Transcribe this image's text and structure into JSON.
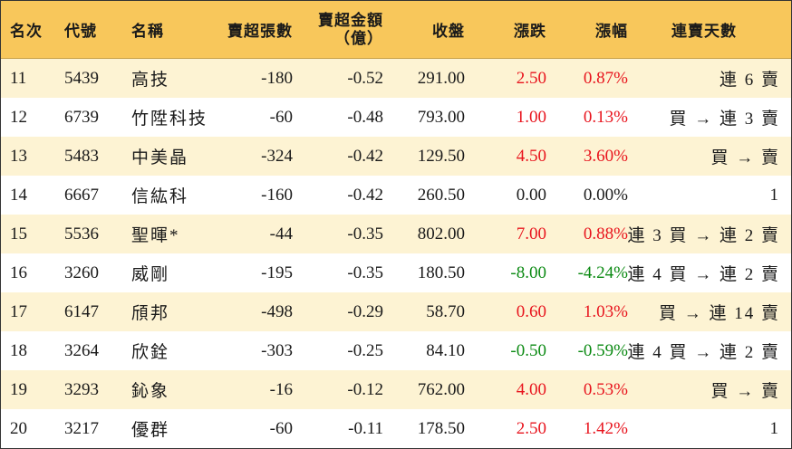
{
  "headers": {
    "rank": "名次",
    "code": "代號",
    "name": "名稱",
    "net_sell_lots": "賣超張數",
    "net_sell_amount_line1": "賣超金額",
    "net_sell_amount_line2": "（億）",
    "close": "收盤",
    "change": "漲跌",
    "change_pct": "漲幅",
    "streak": "連賣天數"
  },
  "rows": [
    {
      "rank": "11",
      "code": "5439",
      "name": "高技",
      "lots": "-180",
      "amount": "-0.52",
      "close": "291.00",
      "change": "2.50",
      "pct": "0.87%",
      "dir": "up",
      "streak": "連 6 賣"
    },
    {
      "rank": "12",
      "code": "6739",
      "name": "竹陞科技",
      "lots": "-60",
      "amount": "-0.48",
      "close": "793.00",
      "change": "1.00",
      "pct": "0.13%",
      "dir": "up",
      "streak": "買 → 連 3 賣"
    },
    {
      "rank": "13",
      "code": "5483",
      "name": "中美晶",
      "lots": "-324",
      "amount": "-0.42",
      "close": "129.50",
      "change": "4.50",
      "pct": "3.60%",
      "dir": "up",
      "streak": "買 → 賣"
    },
    {
      "rank": "14",
      "code": "6667",
      "name": "信紘科",
      "lots": "-160",
      "amount": "-0.42",
      "close": "260.50",
      "change": "0.00",
      "pct": "0.00%",
      "dir": "flat",
      "streak": "1"
    },
    {
      "rank": "15",
      "code": "5536",
      "name": "聖暉*",
      "lots": "-44",
      "amount": "-0.35",
      "close": "802.00",
      "change": "7.00",
      "pct": "0.88%",
      "dir": "up",
      "streak": "連 3 買 → 連 2 賣"
    },
    {
      "rank": "16",
      "code": "3260",
      "name": "威剛",
      "lots": "-195",
      "amount": "-0.35",
      "close": "180.50",
      "change": "-8.00",
      "pct": "-4.24%",
      "dir": "down",
      "streak": "連 4 買 → 連 2 賣"
    },
    {
      "rank": "17",
      "code": "6147",
      "name": "頎邦",
      "lots": "-498",
      "amount": "-0.29",
      "close": "58.70",
      "change": "0.60",
      "pct": "1.03%",
      "dir": "up",
      "streak": "買 → 連 14 賣"
    },
    {
      "rank": "18",
      "code": "3264",
      "name": "欣銓",
      "lots": "-303",
      "amount": "-0.25",
      "close": "84.10",
      "change": "-0.50",
      "pct": "-0.59%",
      "dir": "down",
      "streak": "連 4 買 → 連 2 賣"
    },
    {
      "rank": "19",
      "code": "3293",
      "name": "鈊象",
      "lots": "-16",
      "amount": "-0.12",
      "close": "762.00",
      "change": "4.00",
      "pct": "0.53%",
      "dir": "up",
      "streak": "買 → 賣"
    },
    {
      "rank": "20",
      "code": "3217",
      "name": "優群",
      "lots": "-60",
      "amount": "-0.11",
      "close": "178.50",
      "change": "2.50",
      "pct": "1.42%",
      "dir": "up",
      "streak": "1"
    }
  ],
  "colors": {
    "header_bg": "#f8c75b",
    "stripe_bg": "#fdf3d3",
    "up": "#e8141d",
    "down": "#0b8a13"
  }
}
